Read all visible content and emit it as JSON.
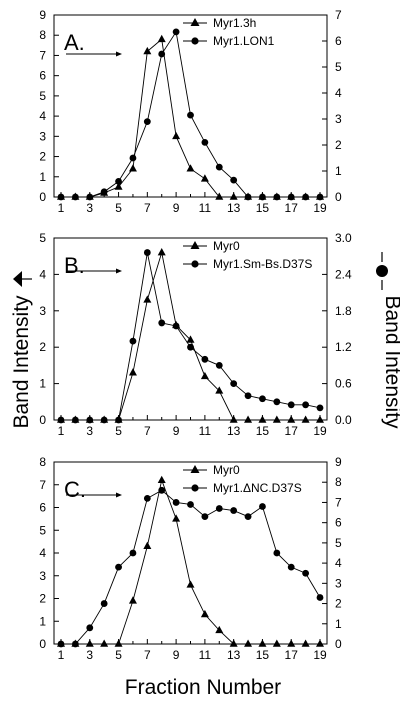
{
  "figure": {
    "left_axis_label": "Band Intensity",
    "right_axis_label": "Band Intensity",
    "x_axis_label": "Fraction Number"
  },
  "chart_data": [
    {
      "type": "line",
      "panel_label": "A.",
      "x": [
        1,
        2,
        3,
        4,
        5,
        6,
        7,
        8,
        9,
        10,
        11,
        12,
        13,
        14,
        15,
        16,
        17,
        18,
        19
      ],
      "x_ticks": [
        1,
        3,
        5,
        7,
        9,
        11,
        13,
        15,
        17,
        19
      ],
      "ylim_left": [
        0,
        9
      ],
      "yticks_left": [
        0,
        1,
        2,
        3,
        4,
        5,
        6,
        7,
        8,
        9
      ],
      "ylim_right": [
        0,
        7
      ],
      "yticks_right": [
        0,
        1,
        2,
        3,
        4,
        5,
        6,
        7
      ],
      "series": [
        {
          "name": "Myr1.3h",
          "marker": "triangle",
          "axis": "left",
          "values": [
            0,
            0,
            0,
            0.2,
            0.5,
            1.4,
            7.2,
            7.8,
            3.0,
            1.4,
            0.9,
            0,
            0,
            0,
            0,
            0,
            0,
            0,
            0
          ]
        },
        {
          "name": "Myr1.LON1",
          "marker": "circle",
          "axis": "right",
          "values": [
            0,
            0,
            0,
            0.2,
            0.6,
            1.5,
            2.9,
            5.5,
            6.35,
            3.15,
            2.1,
            1.15,
            0.65,
            0,
            0,
            0,
            0,
            0,
            0
          ]
        }
      ]
    },
    {
      "type": "line",
      "panel_label": "B.",
      "x": [
        1,
        2,
        3,
        4,
        5,
        6,
        7,
        8,
        9,
        10,
        11,
        12,
        13,
        14,
        15,
        16,
        17,
        18,
        19
      ],
      "x_ticks": [
        1,
        3,
        5,
        7,
        9,
        11,
        13,
        15,
        17,
        19
      ],
      "ylim_left": [
        0,
        5
      ],
      "yticks_left": [
        0,
        1,
        2,
        3,
        4,
        5
      ],
      "ylim_right": [
        0,
        3.0
      ],
      "yticks_right": [
        "0.0",
        "0.6",
        "1.2",
        "1.8",
        "2.4",
        "3.0"
      ],
      "series": [
        {
          "name": "Myr0",
          "marker": "triangle",
          "axis": "left",
          "values": [
            0,
            0,
            0,
            0,
            0,
            1.3,
            3.3,
            4.6,
            2.6,
            2.2,
            1.2,
            0.8,
            0,
            0,
            0,
            0,
            0,
            0,
            0
          ]
        },
        {
          "name": "Myr1.Sm-Bs.D37S",
          "marker": "circle",
          "axis": "right",
          "values": [
            0,
            0,
            0,
            0,
            0,
            1.3,
            2.76,
            1.6,
            1.55,
            1.2,
            1.0,
            0.9,
            0.6,
            0.4,
            0.35,
            0.3,
            0.25,
            0.25,
            0.2
          ]
        }
      ]
    },
    {
      "type": "line",
      "panel_label": "C.",
      "x": [
        1,
        2,
        3,
        4,
        5,
        6,
        7,
        8,
        9,
        10,
        11,
        12,
        13,
        14,
        15,
        16,
        17,
        18,
        19
      ],
      "x_ticks": [
        1,
        3,
        5,
        7,
        9,
        11,
        13,
        15,
        17,
        19
      ],
      "ylim_left": [
        0,
        8
      ],
      "yticks_left": [
        0,
        1,
        2,
        3,
        4,
        5,
        6,
        7,
        8
      ],
      "ylim_right": [
        0,
        9
      ],
      "yticks_right": [
        0,
        1,
        2,
        3,
        4,
        5,
        6,
        7,
        8,
        9
      ],
      "series": [
        {
          "name": "Myr0",
          "marker": "triangle",
          "axis": "left",
          "values": [
            0,
            0,
            0,
            0,
            0,
            1.9,
            4.3,
            7.2,
            5.5,
            2.6,
            1.3,
            0.6,
            0,
            0,
            0,
            0,
            0,
            0,
            0
          ]
        },
        {
          "name": "Myr1.ΔNC.D37S",
          "marker": "circle",
          "axis": "right",
          "values": [
            0,
            0,
            0.8,
            2.0,
            3.8,
            4.5,
            7.2,
            7.6,
            7.0,
            6.9,
            6.3,
            6.7,
            6.6,
            6.3,
            6.8,
            4.5,
            3.8,
            3.5,
            2.3
          ]
        }
      ]
    }
  ]
}
